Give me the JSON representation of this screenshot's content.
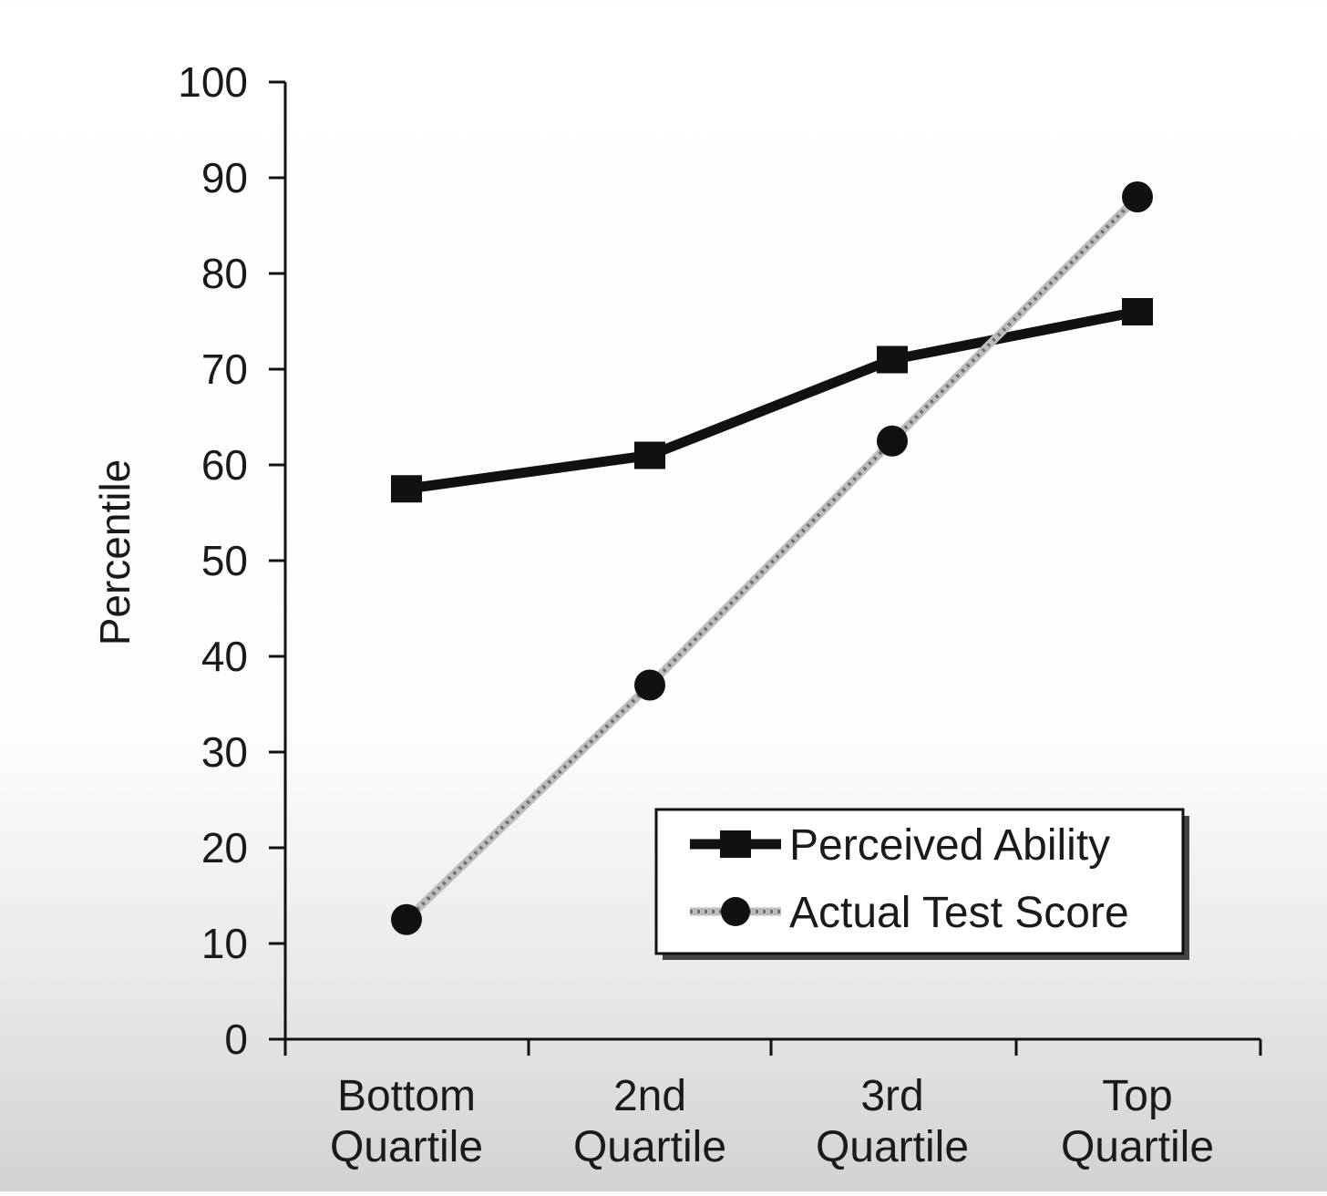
{
  "chart_data": {
    "type": "line",
    "categories": [
      "Bottom Quartile",
      "2nd Quartile",
      "3rd Quartile",
      "Top Quartile"
    ],
    "category_lines": [
      [
        "Bottom",
        "Quartile"
      ],
      [
        "2nd",
        "Quartile"
      ],
      [
        "3rd",
        "Quartile"
      ],
      [
        "Top",
        "Quartile"
      ]
    ],
    "series": [
      {
        "name": "Perceived Ability",
        "values": [
          57.5,
          61,
          71,
          76
        ],
        "marker": "square",
        "line_style": "solid",
        "color": "#111111"
      },
      {
        "name": "Actual Test Score",
        "values": [
          12.5,
          37,
          62.5,
          88
        ],
        "marker": "circle",
        "line_style": "dotted-gray",
        "color": "#9a9a9a"
      }
    ],
    "ylabel": "Percentile",
    "xlabel": "",
    "title": "",
    "ylim": [
      0,
      100
    ],
    "yticks": [
      0,
      10,
      20,
      30,
      40,
      50,
      60,
      70,
      80,
      90,
      100
    ],
    "grid": false,
    "legend_position": "bottom-right"
  }
}
